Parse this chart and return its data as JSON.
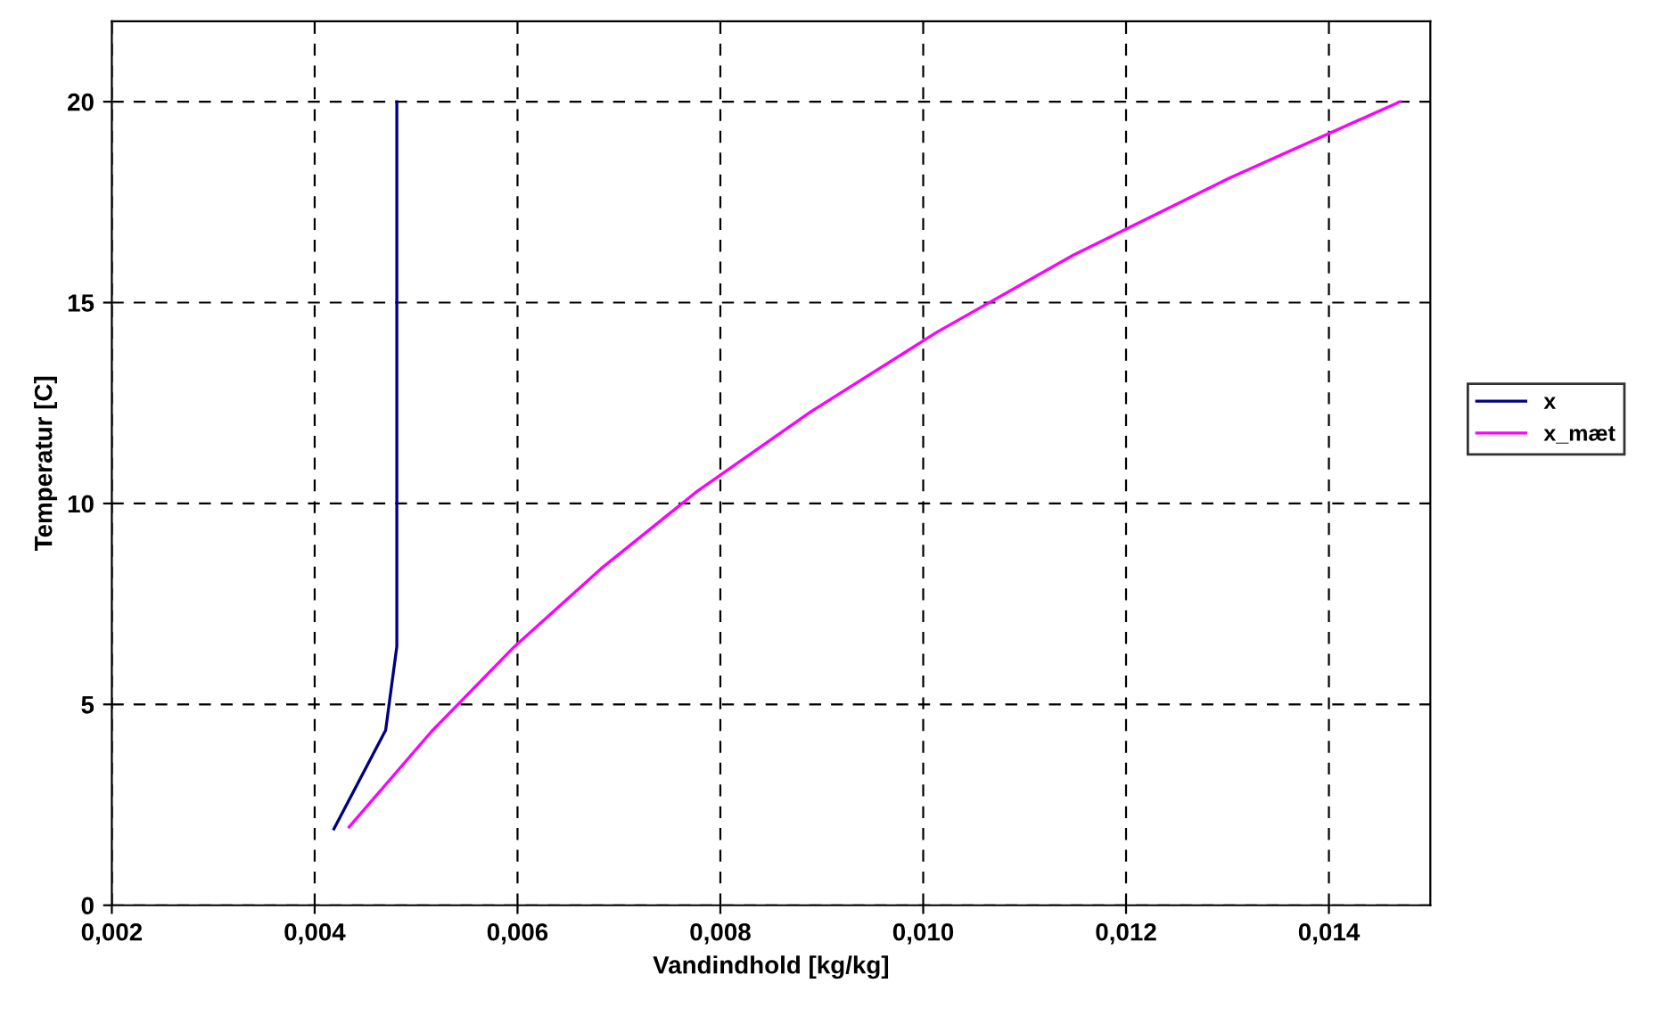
{
  "chart_data": {
    "type": "line",
    "xlabel": "Vandindhold [kg/kg]",
    "ylabel": "Temperatur [C]",
    "series": [
      {
        "name": "x",
        "color": "#000080",
        "x": [
          0.00419,
          0.0047,
          0.00481,
          0.00481
        ],
        "values": [
          1.9,
          4.36,
          6.44,
          20
        ]
      },
      {
        "name": "x_mæt",
        "color": "#ff00ff",
        "x": [
          0.00434,
          0.00515,
          0.00597,
          0.00682,
          0.00777,
          0.00889,
          0.01014,
          0.01148,
          0.01302,
          0.0147
        ],
        "values": [
          1.95,
          4.32,
          6.44,
          8.37,
          10.3,
          12.28,
          14.27,
          16.18,
          18.1,
          20
        ]
      }
    ],
    "xlim": [
      0.002,
      0.015
    ],
    "xticks": [
      {
        "value": 0.002,
        "label": "0,002"
      },
      {
        "value": 0.004,
        "label": "0,004"
      },
      {
        "value": 0.006,
        "label": "0,006"
      },
      {
        "value": 0.008,
        "label": "0,008"
      },
      {
        "value": 0.01,
        "label": "0,010"
      },
      {
        "value": 0.012,
        "label": "0,012"
      },
      {
        "value": 0.014,
        "label": "0,014"
      }
    ],
    "ylim": [
      0,
      22
    ],
    "yticks": [
      0,
      5,
      10,
      15,
      20
    ],
    "grid": true,
    "legend": "right",
    "marker": "none",
    "line_style": "solid"
  }
}
